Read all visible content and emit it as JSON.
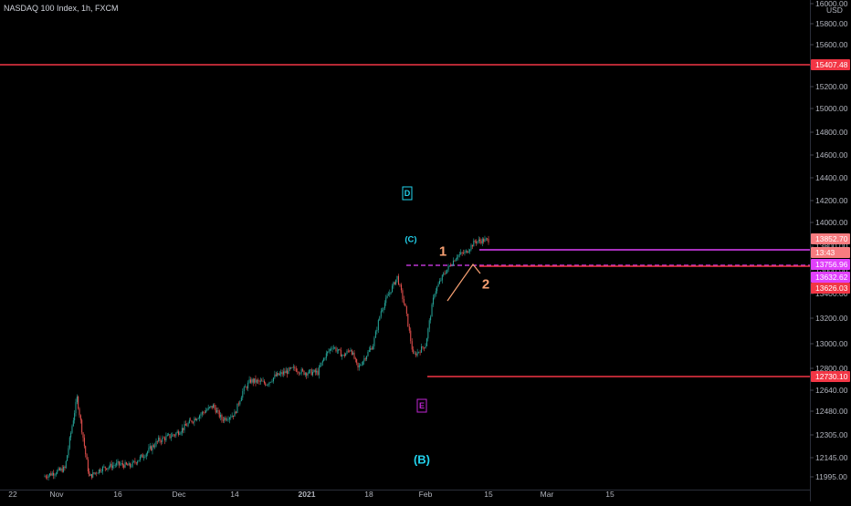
{
  "window": {
    "title": "NASDAQ 100 Index, 1h, FXCM"
  },
  "chart_data": {
    "type": "candlestick",
    "title": "NASDAQ 100 Index, 1h, FXCM",
    "currency": "USD",
    "xlabel": "",
    "ylabel": "",
    "x_ticks": [
      "22",
      "Nov",
      "16",
      "Dec",
      "14",
      "2021",
      "18",
      "Feb",
      "15",
      "Mar",
      "15"
    ],
    "y_ticks": [
      "16000.00",
      "15800.00",
      "15600.00",
      "15400.00",
      "15200.00",
      "15000.00",
      "14800.00",
      "14600.00",
      "14400.00",
      "14200.00",
      "14000.00",
      "13800.00",
      "13600.00",
      "13400.00",
      "13200.00",
      "13000.00",
      "12800.00",
      "12640.00",
      "12480.00",
      "12305.00",
      "12145.00",
      "11995.00"
    ],
    "price_labels": [
      {
        "text": "15407.48",
        "kind": "level"
      },
      {
        "text": "13852.70",
        "kind": "last"
      },
      {
        "text": "13:43",
        "kind": "timer"
      },
      {
        "text": "13756.96",
        "kind": "magenta"
      },
      {
        "text": "13632.62",
        "kind": "magenta"
      },
      {
        "text": "13626.03",
        "kind": "level"
      },
      {
        "text": "12730.10",
        "kind": "level"
      }
    ],
    "wave_labels": [
      {
        "text": "D",
        "style": "cyan-box"
      },
      {
        "text": "(C)",
        "style": "cyan"
      },
      {
        "text": "1",
        "style": "orange"
      },
      {
        "text": "2",
        "style": "orange"
      },
      {
        "text": "E",
        "style": "purple-box"
      },
      {
        "text": "(B)",
        "style": "cyan-big"
      }
    ],
    "series": [
      {
        "x": [
          "Oct 29",
          "Nov 3",
          "Nov 6",
          "Nov 9",
          "Nov 12",
          "Nov 16",
          "Nov 19",
          "Nov 23",
          "Nov 26",
          "Nov 30",
          "Dec 2",
          "Dec 4",
          "Dec 7",
          "Dec 9",
          "Dec 11",
          "Dec 14",
          "Dec 16",
          "Dec 18",
          "Dec 22",
          "Dec 24",
          "Dec 29",
          "Dec 31",
          "Jan 4",
          "Jan 6",
          "Jan 8",
          "Jan 11",
          "Jan 13",
          "Jan 15",
          "Jan 19",
          "Jan 21",
          "Jan 25",
          "Jan 27",
          "Jan 29",
          "Feb 1",
          "Feb 3",
          "Feb 5",
          "Feb 8",
          "Feb 10",
          "Feb 12",
          "Feb 15"
        ],
        "values": [
          11995,
          12060,
          12580,
          11995,
          12060,
          12095,
          12080,
          12180,
          12265,
          12310,
          12355,
          12410,
          12480,
          12520,
          12420,
          12460,
          12630,
          12710,
          12690,
          12740,
          12800,
          12770,
          12770,
          12900,
          12980,
          12900,
          12960,
          12800,
          12990,
          13260,
          13540,
          13280,
          12900,
          12990,
          13410,
          13560,
          13720,
          13750,
          13840,
          13853
        ]
      }
    ]
  }
}
